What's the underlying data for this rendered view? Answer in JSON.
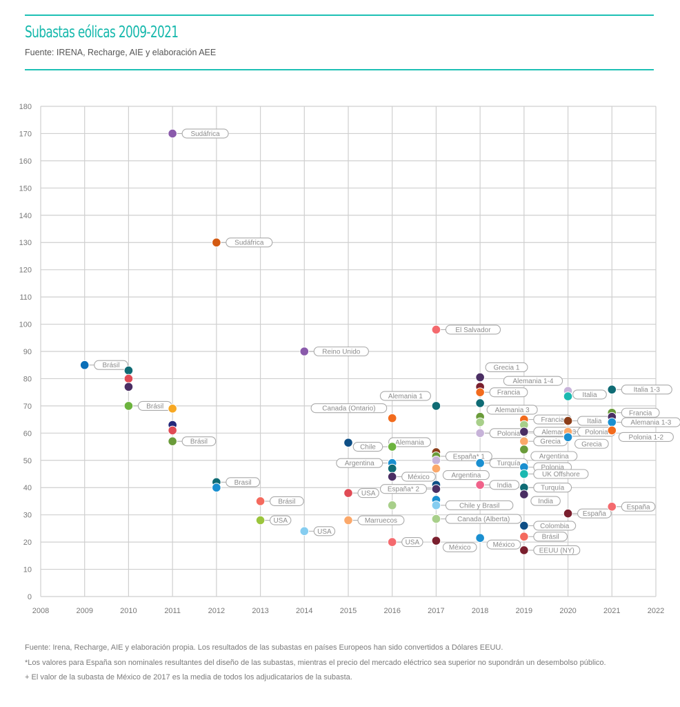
{
  "header": {
    "title": "Subastas eólicas 2009-2021",
    "subtitle": "Fuente: IRENA, Recharge, AIE y elaboración AEE"
  },
  "notes": [
    "Fuente: Irena, Recharge, AIE y elaboración propia. Los resultados de las subastas en países Europeos han sido convertidos a Dólares EEUU.",
    "*Los valores para España son nominales resultantes del diseño de las subastas, mientras el precio del mercado eléctrico sea superior no supondrán un desembolso público.",
    "+ El valor de la subasta de México de 2017 es la media de todos los adjudicatarios de la subasta."
  ],
  "chart_data": {
    "type": "scatter",
    "title": "Subastas eólicas 2009-2021",
    "subtitle": "Fuente: IRENA, Recharge, AIE y elaboración AEE",
    "xlabel": "",
    "ylabel": "",
    "xlim": [
      2008,
      2022
    ],
    "ylim": [
      0,
      180
    ],
    "x_ticks": [
      2008,
      2009,
      2010,
      2011,
      2012,
      2013,
      2014,
      2015,
      2016,
      2017,
      2018,
      2019,
      2020,
      2021,
      2022
    ],
    "y_ticks": [
      0,
      10,
      20,
      30,
      40,
      50,
      60,
      70,
      80,
      90,
      100,
      110,
      120,
      130,
      140,
      150,
      160,
      170,
      180
    ],
    "grid": true,
    "legend": "none",
    "points": [
      {
        "x": 2009,
        "y": 85,
        "label": "Brásil",
        "color": "#0b6fb8",
        "lside": "r"
      },
      {
        "x": 2010,
        "y": 83,
        "label": "",
        "color": "#0f6b74"
      },
      {
        "x": 2010,
        "y": 80,
        "label": "",
        "color": "#e04b55"
      },
      {
        "x": 2010,
        "y": 77,
        "label": "",
        "color": "#4a2e63"
      },
      {
        "x": 2010,
        "y": 70,
        "label": "Brásil",
        "color": "#6cb33e",
        "lside": "r"
      },
      {
        "x": 2011,
        "y": 170,
        "label": "Sudáfrica",
        "color": "#8a5aab",
        "lside": "r"
      },
      {
        "x": 2011,
        "y": 69,
        "label": "",
        "color": "#f7a823"
      },
      {
        "x": 2011,
        "y": 63,
        "label": "",
        "color": "#23287a"
      },
      {
        "x": 2011,
        "y": 61,
        "label": "",
        "color": "#e04b55"
      },
      {
        "x": 2011,
        "y": 57,
        "label": "Brásil",
        "color": "#6a9b3a",
        "lside": "r"
      },
      {
        "x": 2012,
        "y": 130,
        "label": "Sudáfrica",
        "color": "#d35a12",
        "lside": "r"
      },
      {
        "x": 2012,
        "y": 42,
        "label": "Brasil",
        "color": "#0f6b74",
        "lside": "r"
      },
      {
        "x": 2012,
        "y": 40,
        "label": "",
        "color": "#1a8fd0"
      },
      {
        "x": 2013,
        "y": 35,
        "label": "Brásil",
        "color": "#f46a5e",
        "lside": "r"
      },
      {
        "x": 2013,
        "y": 28,
        "label": "USA",
        "color": "#9bc53d",
        "lside": "r"
      },
      {
        "x": 2014,
        "y": 90,
        "label": "Reino Unido",
        "color": "#8a5aab",
        "lside": "r"
      },
      {
        "x": 2014,
        "y": 24,
        "label": "USA",
        "color": "#86cdf0",
        "lside": "r"
      },
      {
        "x": 2015,
        "y": 56.5,
        "label": "",
        "color": "#0e4f86"
      },
      {
        "x": 2015,
        "y": 38,
        "label": "USA",
        "color": "#e04b55",
        "lside": "r"
      },
      {
        "x": 2015,
        "y": 28,
        "label": "Marruecos",
        "color": "#fba86a",
        "lside": "r"
      },
      {
        "x": 2016,
        "y": 65.5,
        "label": "Canada (Ontario)",
        "color": "#f26b1d",
        "lside": "ul"
      },
      {
        "x": 2016,
        "y": 55,
        "label": "Chile",
        "color": "#6cb33e",
        "lside": "l"
      },
      {
        "x": 2016,
        "y": 49,
        "label": "Argentina",
        "color": "#1a8fd0",
        "lside": "l"
      },
      {
        "x": 2016,
        "y": 47,
        "label": "",
        "color": "#0f6b74"
      },
      {
        "x": 2016,
        "y": 44,
        "label": "México",
        "color": "#4a2e63",
        "lside": "r"
      },
      {
        "x": 2016,
        "y": 33.5,
        "label": "",
        "color": "#a8cf8a"
      },
      {
        "x": 2016,
        "y": 20,
        "label": "USA",
        "color": "#f46a6e",
        "lside": "r"
      },
      {
        "x": 2017,
        "y": 98,
        "label": "El Salvador",
        "color": "#f46a6e",
        "lside": "r"
      },
      {
        "x": 2017,
        "y": 70,
        "label": "Alemania 1",
        "color": "#0f6b74",
        "lside": "ul"
      },
      {
        "x": 2017,
        "y": 53,
        "label": "Alemania",
        "color": "#8b3e1a",
        "lside": "ul"
      },
      {
        "x": 2017,
        "y": 51.5,
        "label": "España* 1",
        "color": "#6a9b3a",
        "lside": "r"
      },
      {
        "x": 2017,
        "y": 50,
        "label": "",
        "color": "#c7b3d9"
      },
      {
        "x": 2017,
        "y": 47,
        "label": "Argentina",
        "color": "#fba86a",
        "lside": "dr"
      },
      {
        "x": 2017,
        "y": 41,
        "label": "",
        "color": "#0e4f86"
      },
      {
        "x": 2017,
        "y": 39.5,
        "label": "España* 2",
        "color": "#4a2e63",
        "lside": "l"
      },
      {
        "x": 2017,
        "y": 35.5,
        "label": "",
        "color": "#1a8fd0"
      },
      {
        "x": 2017,
        "y": 33.5,
        "label": "Chile y Brasil",
        "color": "#86cdf0",
        "lside": "r"
      },
      {
        "x": 2017,
        "y": 28.5,
        "label": "Canada (Alberta)",
        "color": "#a8cf8a",
        "lside": "r"
      },
      {
        "x": 2017,
        "y": 20.5,
        "label": "México",
        "color": "#7a1f2e",
        "lside": "dr"
      },
      {
        "x": 2018,
        "y": 80.5,
        "label": "Grecia 1",
        "color": "#4a2e63",
        "lside": "ur"
      },
      {
        "x": 2018,
        "y": 77,
        "label": "",
        "color": "#7a1f2e"
      },
      {
        "x": 2018,
        "y": 75,
        "label": "Francia",
        "color": "#f26b1d",
        "lside": "r"
      },
      {
        "x": 2018,
        "y": 71,
        "label": "Alemania 3",
        "color": "#0f6b74",
        "lside": "dr"
      },
      {
        "x": 2018,
        "y": 66,
        "label": "",
        "color": "#6a9b3a"
      },
      {
        "x": 2018,
        "y": 64,
        "label": "",
        "color": "#a8cf8a"
      },
      {
        "x": 2018,
        "y": 60,
        "label": "Polonia",
        "color": "#c7b3d9",
        "lside": "r"
      },
      {
        "x": 2018,
        "y": 49,
        "label": "Turquía",
        "color": "#1a8fd0",
        "lside": "r"
      },
      {
        "x": 2018,
        "y": 41,
        "label": "India",
        "color": "#f0628a",
        "lside": "r"
      },
      {
        "x": 2018,
        "y": 21.5,
        "label": "México",
        "color": "#1a8fd0",
        "lside": "dr"
      },
      {
        "x": 2019,
        "y": 65,
        "label": "Francia",
        "color": "#f26b1d",
        "lside": "r"
      },
      {
        "x": 2019,
        "y": 63,
        "label": "",
        "color": "#a8cf8a"
      },
      {
        "x": 2019,
        "y": 60.5,
        "label": "Alemania 3",
        "color": "#4a2e63",
        "lside": "r"
      },
      {
        "x": 2019,
        "y": 57,
        "label": "Grecia",
        "color": "#fba86a",
        "lside": "r"
      },
      {
        "x": 2019,
        "y": 54,
        "label": "Argentina",
        "color": "#6a9b3a",
        "lside": "dr"
      },
      {
        "x": 2019,
        "y": 47.5,
        "label": "Polonia",
        "color": "#1a8fd0",
        "lside": "r"
      },
      {
        "x": 2019,
        "y": 45,
        "label": "UK Offshore",
        "color": "#1ab8b0",
        "lside": "r"
      },
      {
        "x": 2019,
        "y": 40,
        "label": "Turquía",
        "color": "#0f6b74",
        "lside": "r"
      },
      {
        "x": 2019,
        "y": 37.5,
        "label": "India",
        "color": "#4a2e63",
        "lside": "dr"
      },
      {
        "x": 2019,
        "y": 26,
        "label": "Colombia",
        "color": "#0e4f86",
        "lside": "r"
      },
      {
        "x": 2019,
        "y": 22,
        "label": "Brásil",
        "color": "#f46a5e",
        "lside": "r"
      },
      {
        "x": 2019,
        "y": 17,
        "label": "EEUU (NY)",
        "color": "#7a1f2e",
        "lside": "r"
      },
      {
        "x": 2020,
        "y": 75.5,
        "label": "Alemania 1-4",
        "color": "#c7b3d9",
        "lside": "ul"
      },
      {
        "x": 2020,
        "y": 73.5,
        "label": "",
        "color": "#1ab8b0"
      },
      {
        "x": 2020,
        "y": 64.5,
        "label": "Italia",
        "color": "#8b3e1a",
        "lside": "r"
      },
      {
        "x": 2020,
        "y": 60.5,
        "label": "Polonia",
        "color": "#fba86a",
        "lside": "r"
      },
      {
        "x": 2020,
        "y": 58.5,
        "label": "Grecia",
        "color": "#1a8fd0",
        "lside": "dr"
      },
      {
        "x": 2020,
        "y": 30.5,
        "label": "España",
        "color": "#7a1f2e",
        "lside": "r"
      },
      {
        "x": 2021,
        "y": 76,
        "label": "Italia 1-3",
        "color": "#0f6b74",
        "lside": "r"
      },
      {
        "x": 2021,
        "y": 67.5,
        "label": "Francia",
        "color": "#6a9b3a",
        "lside": "r"
      },
      {
        "x": 2021,
        "y": 70.5,
        "label": "Italia",
        "color": "none",
        "lside": "ul"
      },
      {
        "x": 2021,
        "y": 66,
        "label": "",
        "color": "#4a2e63"
      },
      {
        "x": 2021,
        "y": 64,
        "label": "Alemania 1-3",
        "color": "#1a8fd0",
        "lside": "r"
      },
      {
        "x": 2021,
        "y": 61,
        "label": "Polonia 1-2",
        "color": "#f26b1d",
        "lside": "dr"
      },
      {
        "x": 2021,
        "y": 33,
        "label": "España",
        "color": "#f46a6e",
        "lside": "r"
      }
    ]
  }
}
